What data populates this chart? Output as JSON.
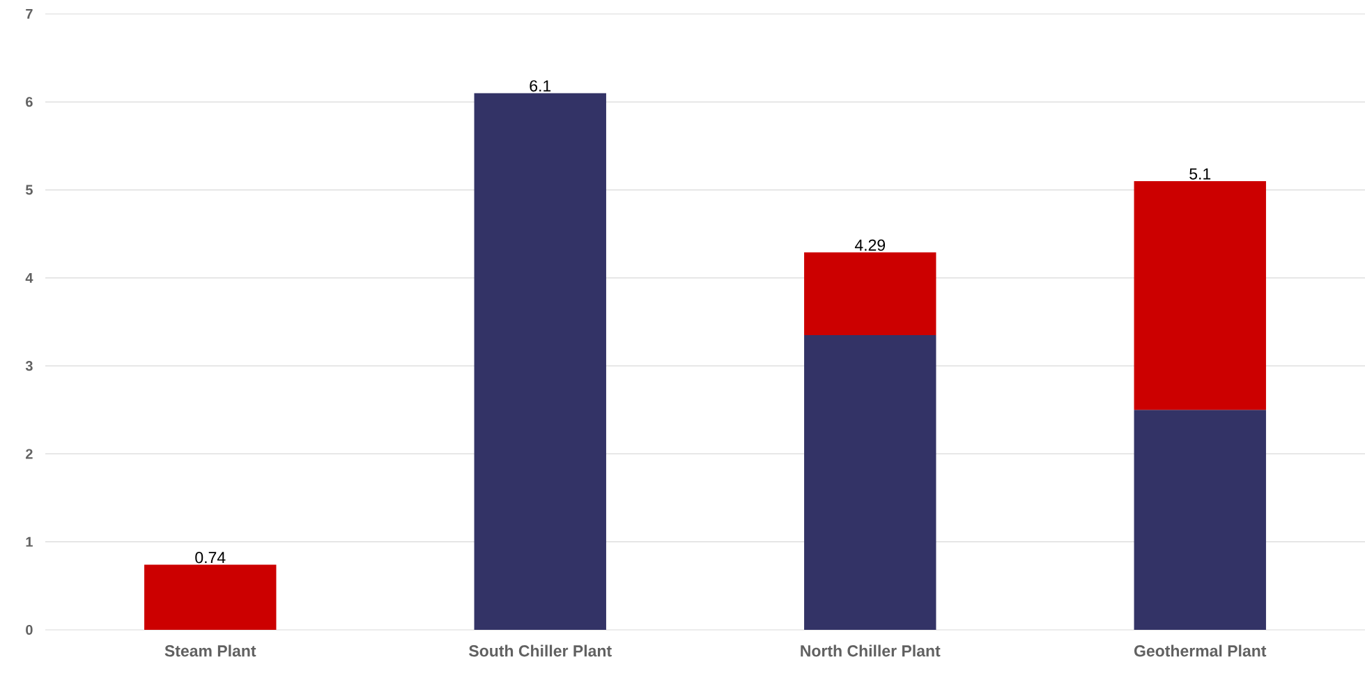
{
  "chart_data": {
    "type": "bar",
    "stacked": true,
    "categories": [
      "Steam Plant",
      "South Chiller Plant",
      "North Chiller Plant",
      "Geothermal Plant"
    ],
    "series": [
      {
        "color": "#333366",
        "values": [
          null,
          6.1,
          3.35,
          2.5
        ]
      },
      {
        "color": "#cc0000",
        "values": [
          0.74,
          null,
          0.94,
          2.6
        ]
      }
    ],
    "totals": [
      "0.74",
      "6.1",
      "4.29",
      "5.1"
    ],
    "ylim": [
      0,
      7
    ],
    "yticks": [
      0,
      1,
      2,
      3,
      4,
      5,
      6,
      7
    ],
    "grid": "y"
  }
}
